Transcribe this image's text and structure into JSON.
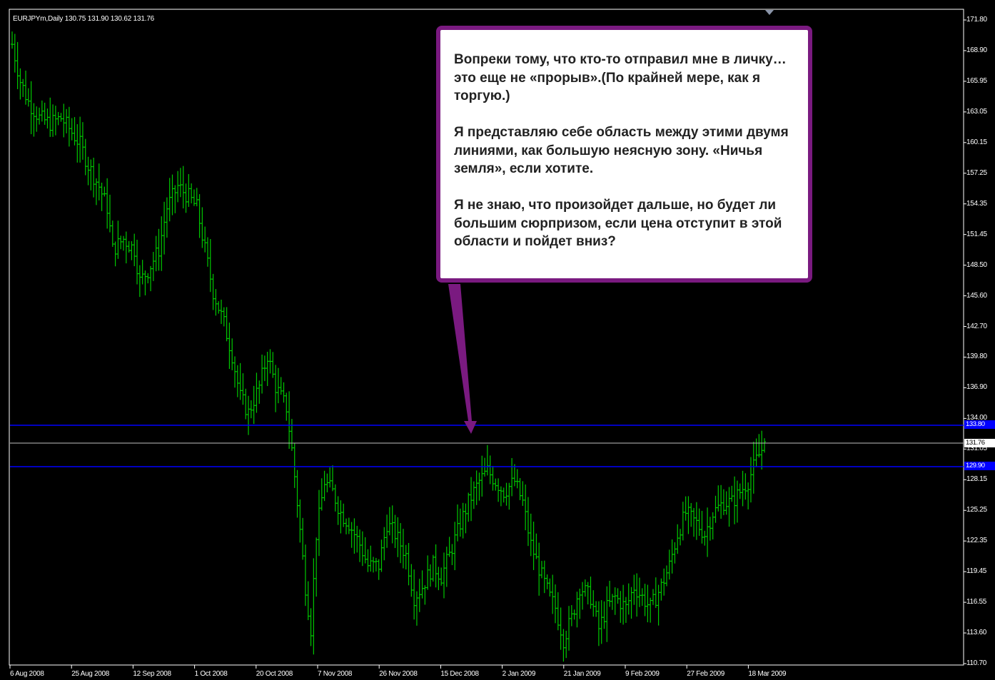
{
  "window": {
    "symbol_label": "EURJPYm,Daily  130.75 131.90 130.62 131.76"
  },
  "colors": {
    "background": "#000000",
    "bars": "#00c800",
    "level_lines": "#0000ff",
    "bid_line": "#c0c0c0",
    "axis": "#ffffff",
    "callout_border": "#7a1a80",
    "callout_fill": "#ffffff"
  },
  "price_axis": {
    "ticks": [
      "171.80",
      "168.90",
      "165.95",
      "163.05",
      "160.15",
      "157.25",
      "154.35",
      "151.45",
      "148.50",
      "145.60",
      "142.70",
      "139.80",
      "136.90",
      "134.00",
      "131.05",
      "128.15",
      "125.25",
      "122.35",
      "119.45",
      "116.55",
      "113.60",
      "110.70"
    ],
    "current_price_label": "131.76",
    "upper_level_label": "133.80",
    "lower_level_label": "129.90"
  },
  "time_axis": {
    "ticks": [
      "6 Aug 2008",
      "25 Aug 2008",
      "12 Sep 2008",
      "1 Oct 2008",
      "20 Oct 2008",
      "7 Nov 2008",
      "26 Nov 2008",
      "15 Dec 2008",
      "2 Jan 2009",
      "21 Jan 2009",
      "9 Feb 2009",
      "27 Feb 2009",
      "18 Mar 2009"
    ]
  },
  "callout": {
    "paragraph_1": "Вопреки тому, что кто-то отправил мне в личку… это еще не «прорыв».(По крайней мере, как я торгую.)",
    "paragraph_2": "Я представляю себе область между этими двумя линиями, как большую неясную зону. «Ничья земля», если хотите.",
    "paragraph_3": "Я не знаю, что произойдет дальше, но будет ли большим сюрпризом, если цена отступит в этой области и пойдет вниз?"
  },
  "chart_data": {
    "type": "ohlc",
    "symbol": "EURJPYm",
    "timeframe": "Daily",
    "current_bar": {
      "open": 130.75,
      "high": 131.9,
      "low": 130.62,
      "close": 131.76
    },
    "horizontal_levels": [
      133.8,
      129.9
    ],
    "ylim": [
      110.7,
      171.8
    ],
    "grid": false,
    "close_path": [
      [
        0,
        169.5
      ],
      [
        3,
        166
      ],
      [
        6,
        164
      ],
      [
        10,
        162.5
      ],
      [
        14,
        162
      ],
      [
        18,
        162.5
      ],
      [
        21,
        161.5
      ],
      [
        25,
        160
      ],
      [
        28,
        158
      ],
      [
        32,
        156
      ],
      [
        35,
        154
      ],
      [
        37,
        150
      ],
      [
        41,
        151
      ],
      [
        45,
        150
      ],
      [
        47,
        147
      ],
      [
        50,
        148
      ],
      [
        54,
        150
      ],
      [
        57,
        154
      ],
      [
        61,
        156
      ],
      [
        65,
        155
      ],
      [
        68,
        154
      ],
      [
        71,
        150
      ],
      [
        74,
        146
      ],
      [
        78,
        143
      ],
      [
        81,
        140
      ],
      [
        84,
        136
      ],
      [
        87,
        134.5
      ],
      [
        91,
        137
      ],
      [
        94,
        140
      ],
      [
        97,
        137
      ],
      [
        101,
        135
      ],
      [
        103,
        131
      ],
      [
        105,
        126
      ],
      [
        108,
        118
      ],
      [
        110,
        114
      ],
      [
        112,
        123
      ],
      [
        115,
        128
      ],
      [
        118,
        127
      ],
      [
        121,
        125
      ],
      [
        124,
        124
      ],
      [
        128,
        122
      ],
      [
        131,
        120
      ],
      [
        135,
        120
      ],
      [
        138,
        124
      ],
      [
        141,
        123
      ],
      [
        145,
        121
      ],
      [
        148,
        117
      ],
      [
        151,
        118
      ],
      [
        155,
        120
      ],
      [
        158,
        119
      ],
      [
        161,
        121
      ],
      [
        165,
        124
      ],
      [
        168,
        126
      ],
      [
        172,
        128
      ],
      [
        175,
        129
      ],
      [
        178,
        128
      ],
      [
        181,
        127
      ],
      [
        185,
        128
      ],
      [
        188,
        126
      ],
      [
        191,
        122
      ],
      [
        195,
        119
      ],
      [
        198,
        117
      ],
      [
        200,
        116
      ],
      [
        203,
        113
      ],
      [
        206,
        115
      ],
      [
        209,
        118
      ],
      [
        213,
        117
      ],
      [
        216,
        114
      ],
      [
        219,
        116
      ],
      [
        222,
        117
      ],
      [
        226,
        116
      ],
      [
        229,
        118
      ],
      [
        232,
        117
      ],
      [
        235,
        116
      ],
      [
        239,
        118
      ],
      [
        242,
        120
      ],
      [
        245,
        123
      ],
      [
        248,
        125
      ],
      [
        252,
        124
      ],
      [
        255,
        123
      ],
      [
        258,
        125
      ],
      [
        262,
        126
      ],
      [
        265,
        126
      ],
      [
        268,
        127
      ],
      [
        271,
        128
      ],
      [
        274,
        130
      ],
      [
        277,
        131.5
      ]
    ]
  }
}
